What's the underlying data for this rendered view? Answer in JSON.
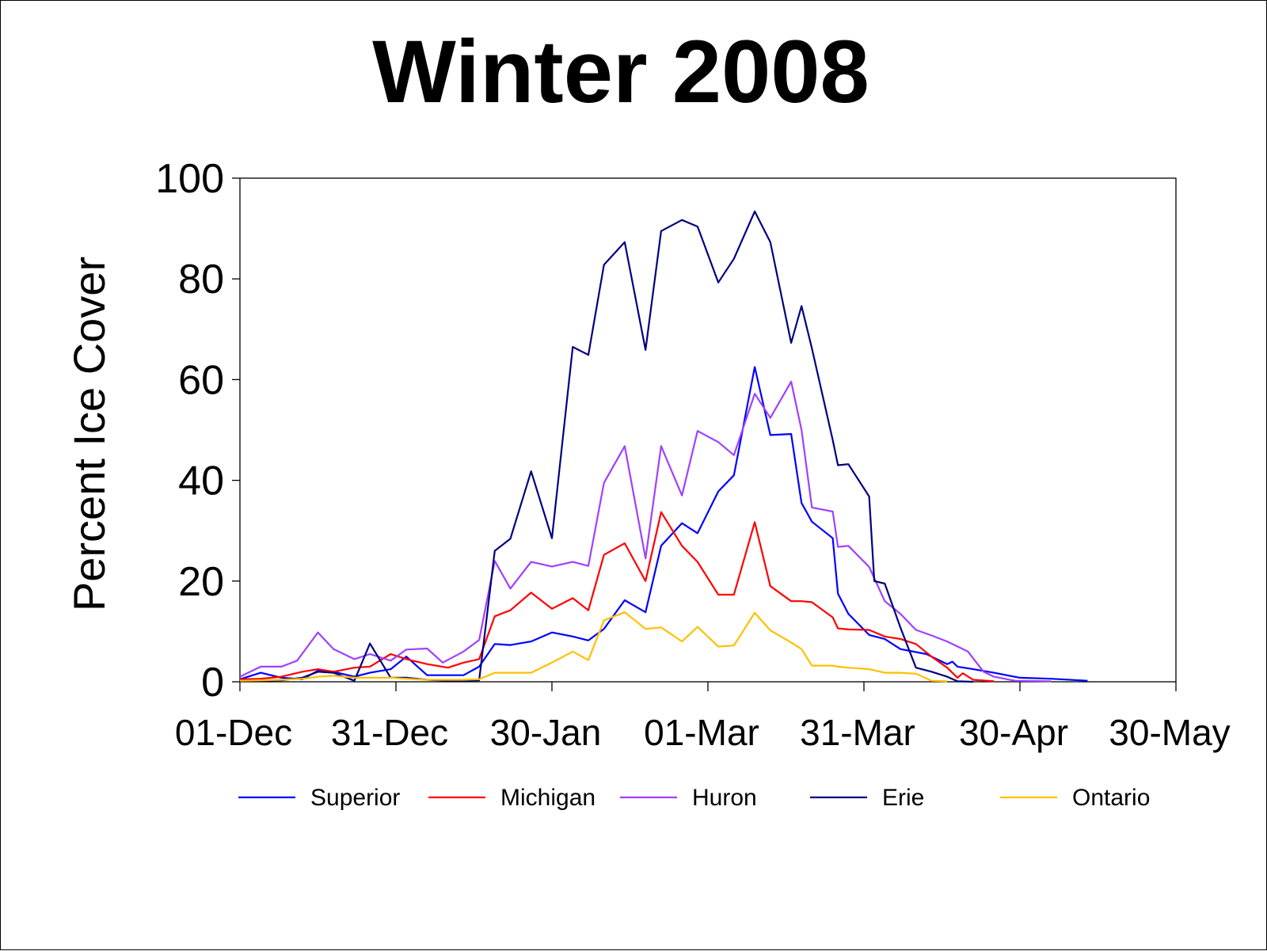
{
  "chart_data": {
    "type": "line",
    "title": "Winter 2008",
    "ylabel": "Percent Ice Cover",
    "xlabel": "",
    "ylim": [
      0,
      100
    ],
    "y_ticks": [
      0,
      20,
      40,
      60,
      80,
      100
    ],
    "x_tick_labels": [
      "01-Dec",
      "31-Dec",
      "30-Jan",
      "01-Mar",
      "31-Mar",
      "30-Apr",
      "30-May"
    ],
    "x_domain_days": [
      0,
      180
    ],
    "grid": false,
    "legend_position": "bottom",
    "series": [
      {
        "name": "Superior",
        "color": "#0000FF",
        "points": [
          [
            0,
            0.5
          ],
          [
            4,
            1.8
          ],
          [
            8,
            0.8
          ],
          [
            12,
            0.5
          ],
          [
            15,
            2.2
          ],
          [
            18,
            2.0
          ],
          [
            22,
            1.0
          ],
          [
            25,
            1.8
          ],
          [
            29,
            2.5
          ],
          [
            32,
            5.0
          ],
          [
            36,
            1.3
          ],
          [
            40,
            1.3
          ],
          [
            43,
            1.3
          ],
          [
            46,
            3.0
          ],
          [
            49,
            7.5
          ],
          [
            52,
            7.3
          ],
          [
            56,
            8.0
          ],
          [
            60,
            9.8
          ],
          [
            64,
            9.0
          ],
          [
            67,
            8.2
          ],
          [
            70,
            10.5
          ],
          [
            74,
            16.2
          ],
          [
            78,
            13.8
          ],
          [
            81,
            27.0
          ],
          [
            85,
            31.5
          ],
          [
            88,
            29.5
          ],
          [
            92,
            37.8
          ],
          [
            95,
            41.0
          ],
          [
            99,
            62.5
          ],
          [
            102,
            49.0
          ],
          [
            106,
            49.2
          ],
          [
            108,
            35.5
          ],
          [
            110,
            31.8
          ],
          [
            114,
            28.5
          ],
          [
            115,
            17.5
          ],
          [
            117,
            13.5
          ],
          [
            121,
            9.3
          ],
          [
            124,
            8.5
          ],
          [
            127,
            6.5
          ],
          [
            132,
            5.5
          ],
          [
            136,
            3.5
          ],
          [
            137,
            4.0
          ],
          [
            138,
            3.0
          ],
          [
            141,
            2.5
          ],
          [
            145,
            1.8
          ],
          [
            150,
            0.8
          ],
          [
            156,
            0.6
          ],
          [
            163,
            0.2
          ]
        ]
      },
      {
        "name": "Michigan",
        "color": "#FF0000",
        "points": [
          [
            0,
            0.5
          ],
          [
            4,
            0.6
          ],
          [
            8,
            1.0
          ],
          [
            12,
            2.0
          ],
          [
            15,
            2.5
          ],
          [
            18,
            2.0
          ],
          [
            22,
            2.8
          ],
          [
            25,
            3.0
          ],
          [
            29,
            5.5
          ],
          [
            32,
            4.5
          ],
          [
            36,
            3.5
          ],
          [
            40,
            2.8
          ],
          [
            43,
            3.8
          ],
          [
            46,
            4.5
          ],
          [
            49,
            13.0
          ],
          [
            52,
            14.2
          ],
          [
            56,
            17.7
          ],
          [
            60,
            14.5
          ],
          [
            64,
            16.6
          ],
          [
            67,
            14.2
          ],
          [
            70,
            25.2
          ],
          [
            74,
            27.5
          ],
          [
            78,
            20.0
          ],
          [
            81,
            33.7
          ],
          [
            85,
            27.0
          ],
          [
            88,
            23.8
          ],
          [
            92,
            17.3
          ],
          [
            95,
            17.3
          ],
          [
            99,
            31.7
          ],
          [
            102,
            19.0
          ],
          [
            106,
            16.0
          ],
          [
            108,
            16.0
          ],
          [
            110,
            15.8
          ],
          [
            114,
            12.8
          ],
          [
            115,
            10.6
          ],
          [
            117,
            10.4
          ],
          [
            121,
            10.3
          ],
          [
            124,
            9.0
          ],
          [
            127,
            8.5
          ],
          [
            130,
            7.5
          ],
          [
            133,
            5.0
          ],
          [
            136,
            2.8
          ],
          [
            138,
            0.8
          ],
          [
            139,
            1.7
          ],
          [
            141,
            0.4
          ],
          [
            145,
            0.1
          ]
        ]
      },
      {
        "name": "Huron",
        "color": "#A040FF",
        "points": [
          [
            0,
            1.0
          ],
          [
            4,
            3.0
          ],
          [
            8,
            3.0
          ],
          [
            11,
            4.2
          ],
          [
            15,
            9.8
          ],
          [
            18,
            6.5
          ],
          [
            22,
            4.5
          ],
          [
            25,
            5.5
          ],
          [
            29,
            4.2
          ],
          [
            32,
            6.4
          ],
          [
            36,
            6.6
          ],
          [
            39,
            3.8
          ],
          [
            43,
            6.0
          ],
          [
            46,
            8.3
          ],
          [
            49,
            24.0
          ],
          [
            52,
            18.5
          ],
          [
            56,
            23.8
          ],
          [
            60,
            22.9
          ],
          [
            64,
            23.8
          ],
          [
            67,
            23.0
          ],
          [
            70,
            39.5
          ],
          [
            74,
            46.8
          ],
          [
            78,
            24.5
          ],
          [
            81,
            46.8
          ],
          [
            85,
            37.0
          ],
          [
            88,
            49.8
          ],
          [
            92,
            47.6
          ],
          [
            95,
            45.0
          ],
          [
            99,
            57.2
          ],
          [
            102,
            52.4
          ],
          [
            106,
            59.6
          ],
          [
            108,
            50.0
          ],
          [
            110,
            34.6
          ],
          [
            114,
            33.8
          ],
          [
            115,
            26.8
          ],
          [
            117,
            27.0
          ],
          [
            121,
            22.8
          ],
          [
            124,
            16.0
          ],
          [
            127,
            13.5
          ],
          [
            130,
            10.3
          ],
          [
            133,
            9.2
          ],
          [
            136,
            8.0
          ],
          [
            140,
            6.0
          ],
          [
            143,
            2.0
          ],
          [
            145,
            1.0
          ],
          [
            149,
            0.2
          ],
          [
            156,
            0.1
          ]
        ]
      },
      {
        "name": "Erie",
        "color": "#000080",
        "points": [
          [
            0,
            0.2
          ],
          [
            4,
            0.2
          ],
          [
            8,
            0.3
          ],
          [
            12,
            0.8
          ],
          [
            15,
            2.0
          ],
          [
            18,
            1.8
          ],
          [
            22,
            0.2
          ],
          [
            25,
            7.6
          ],
          [
            29,
            0.8
          ],
          [
            32,
            0.8
          ],
          [
            36,
            0.4
          ],
          [
            40,
            0.2
          ],
          [
            43,
            0.2
          ],
          [
            46,
            0.3
          ],
          [
            49,
            26.0
          ],
          [
            52,
            28.4
          ],
          [
            56,
            41.8
          ],
          [
            60,
            28.5
          ],
          [
            64,
            66.5
          ],
          [
            67,
            64.9
          ],
          [
            70,
            82.8
          ],
          [
            74,
            87.3
          ],
          [
            78,
            65.9
          ],
          [
            81,
            89.5
          ],
          [
            85,
            91.7
          ],
          [
            88,
            90.4
          ],
          [
            92,
            79.3
          ],
          [
            95,
            84.0
          ],
          [
            99,
            93.4
          ],
          [
            102,
            87.3
          ],
          [
            106,
            67.3
          ],
          [
            108,
            74.6
          ],
          [
            110,
            66.2
          ],
          [
            114,
            48.0
          ],
          [
            115,
            43.0
          ],
          [
            117,
            43.2
          ],
          [
            121,
            36.8
          ],
          [
            122,
            20.0
          ],
          [
            124,
            19.5
          ],
          [
            127,
            10.8
          ],
          [
            130,
            2.8
          ],
          [
            133,
            2.0
          ],
          [
            136,
            1.0
          ],
          [
            138,
            0.1
          ],
          [
            141,
            0.0
          ]
        ]
      },
      {
        "name": "Ontario",
        "color": "#FFC000",
        "points": [
          [
            0,
            0.2
          ],
          [
            4,
            0.3
          ],
          [
            8,
            0.4
          ],
          [
            12,
            0.6
          ],
          [
            15,
            1.0
          ],
          [
            18,
            1.2
          ],
          [
            22,
            0.8
          ],
          [
            25,
            0.8
          ],
          [
            29,
            0.8
          ],
          [
            32,
            0.6
          ],
          [
            36,
            0.4
          ],
          [
            40,
            0.4
          ],
          [
            43,
            0.4
          ],
          [
            46,
            0.5
          ],
          [
            49,
            1.8
          ],
          [
            52,
            1.8
          ],
          [
            56,
            1.8
          ],
          [
            60,
            3.8
          ],
          [
            64,
            6.0
          ],
          [
            67,
            4.3
          ],
          [
            70,
            12.2
          ],
          [
            74,
            13.8
          ],
          [
            78,
            10.5
          ],
          [
            81,
            10.8
          ],
          [
            85,
            8.0
          ],
          [
            88,
            10.9
          ],
          [
            92,
            7.0
          ],
          [
            95,
            7.2
          ],
          [
            99,
            13.7
          ],
          [
            102,
            10.2
          ],
          [
            106,
            7.8
          ],
          [
            108,
            6.5
          ],
          [
            110,
            3.2
          ],
          [
            114,
            3.2
          ],
          [
            115,
            3.0
          ],
          [
            117,
            2.8
          ],
          [
            121,
            2.5
          ],
          [
            124,
            1.8
          ],
          [
            127,
            1.8
          ],
          [
            130,
            1.6
          ],
          [
            133,
            0.2
          ],
          [
            136,
            0.1
          ]
        ]
      }
    ]
  }
}
